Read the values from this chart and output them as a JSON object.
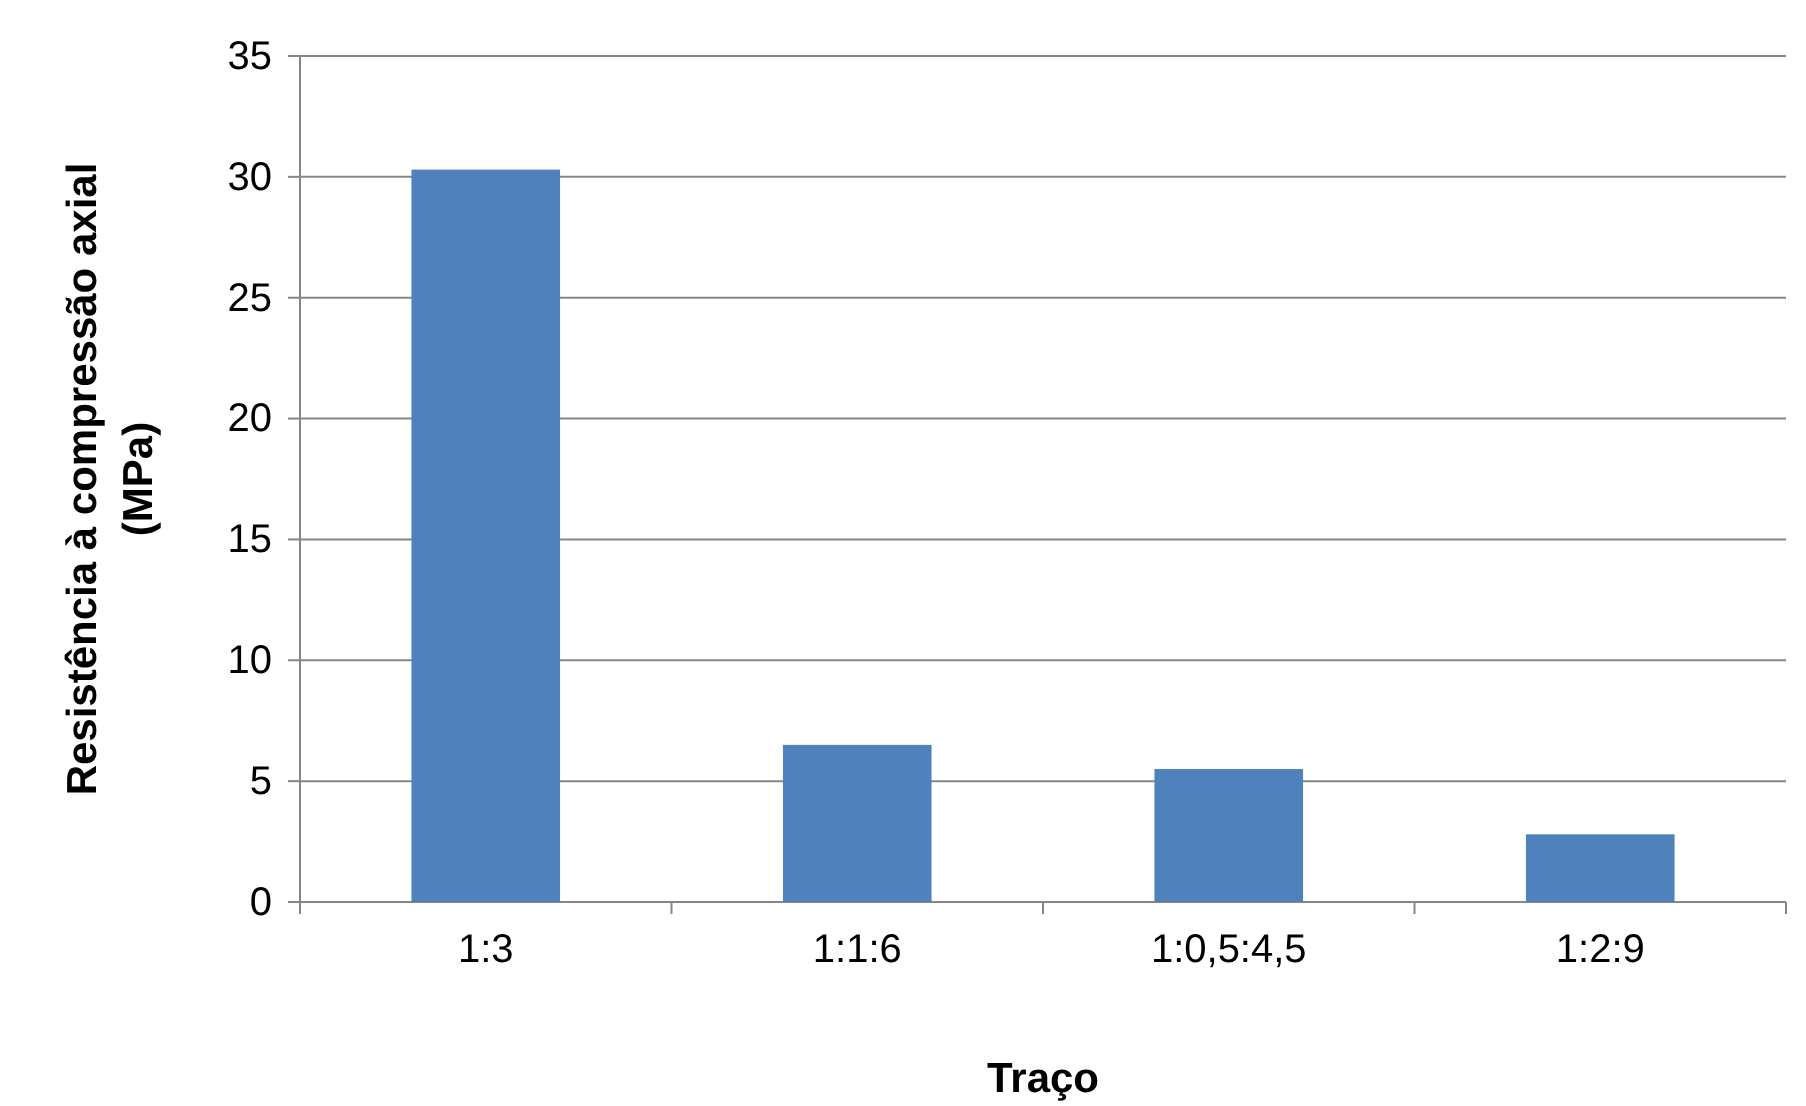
{
  "chart_data": {
    "type": "bar",
    "xlabel": "Traço",
    "ylabel": "Resistência à compressão axial (MPa)",
    "categories": [
      "1:3",
      "1:1:6",
      "1:0,5:4,5",
      "1:2:9"
    ],
    "values": [
      30.3,
      6.5,
      5.5,
      2.8
    ],
    "color": "#4f81bd",
    "ylim": [
      0,
      35
    ],
    "yticks": [
      0,
      5,
      10,
      15,
      20,
      25,
      30,
      35
    ],
    "grid": "y"
  }
}
